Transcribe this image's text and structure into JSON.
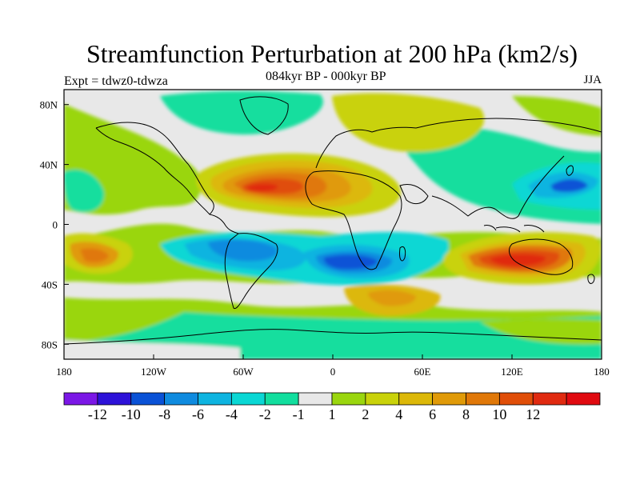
{
  "header": {
    "title": "Streamfunction Perturbation at 200 hPa (km2/s)",
    "subtitle": "084kyr BP - 000kyr BP",
    "left_label": "Expt = tdwz0-tdwza",
    "right_label": "JJA"
  },
  "map": {
    "projection": "cylindrical-equidistant",
    "lon_range": [
      -180,
      180
    ],
    "lat_range": [
      -90,
      90
    ],
    "background_color": "#e8e8e8",
    "coastline_color": "#000000",
    "x_ticks": [
      {
        "lon": -180,
        "label": "180"
      },
      {
        "lon": -120,
        "label": "120W"
      },
      {
        "lon": -60,
        "label": "60W"
      },
      {
        "lon": 0,
        "label": "0"
      },
      {
        "lon": 60,
        "label": "60E"
      },
      {
        "lon": 120,
        "label": "120E"
      },
      {
        "lon": 180,
        "label": "180"
      }
    ],
    "y_ticks": [
      {
        "lat": 80,
        "label": "80N"
      },
      {
        "lat": 40,
        "label": "40N"
      },
      {
        "lat": 0,
        "label": "0"
      },
      {
        "lat": -40,
        "label": "40S"
      },
      {
        "lat": -80,
        "label": "80S"
      }
    ]
  },
  "colorbar": {
    "colors": [
      "#7b17e6",
      "#2d12d8",
      "#0a52d6",
      "#0f8bdf",
      "#0eb4e0",
      "#0ad7d4",
      "#12de9e",
      "#e8e8e8",
      "#9ad60e",
      "#c9d20a",
      "#dcb808",
      "#e09a08",
      "#e07808",
      "#e04e08",
      "#e02a10",
      "#e00a10"
    ],
    "labels": [
      "-12",
      "-10",
      "-8",
      "-6",
      "-4",
      "-2",
      "-1",
      "1",
      "2",
      "4",
      "6",
      "8",
      "10",
      "12"
    ]
  }
}
